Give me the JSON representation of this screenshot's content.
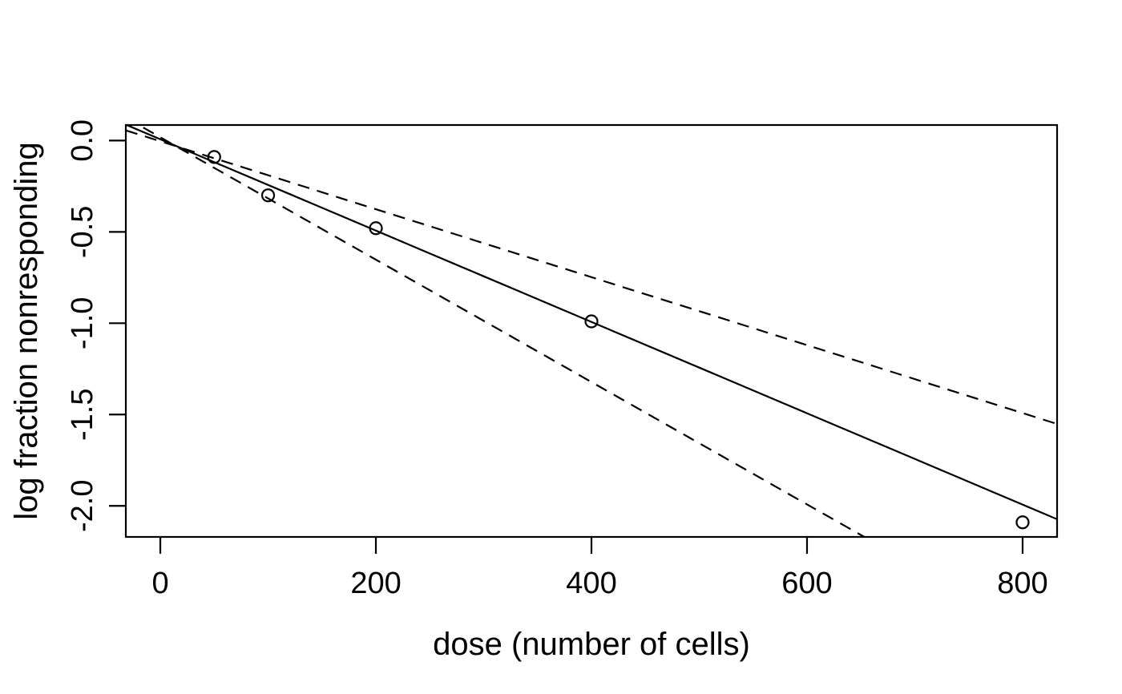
{
  "chart_data": {
    "type": "scatter",
    "title": "",
    "xlabel": "dose (number of cells)",
    "ylabel": "log fraction nonresponding",
    "xlim": [
      -32,
      832
    ],
    "ylim": [
      -2.17,
      0.085
    ],
    "grid": false,
    "legend": null,
    "x_ticks": {
      "values": [
        0,
        200,
        400,
        600,
        800
      ],
      "labels": [
        "0",
        "200",
        "400",
        "600",
        "800"
      ]
    },
    "y_ticks": {
      "values": [
        0,
        -0.5,
        -1.0,
        -1.5,
        -2.0
      ],
      "labels": [
        "0.0",
        "-0.5",
        "-1.0",
        "-1.5",
        "-2.0"
      ]
    },
    "points": {
      "marker": "open-circle",
      "x": [
        50,
        100,
        200,
        400,
        800
      ],
      "y": [
        -0.09,
        -0.3,
        -0.48,
        -0.99,
        -2.09
      ]
    },
    "lines": [
      {
        "name": "fit-line",
        "style": "solid",
        "slope": -0.0025,
        "intercept": 0.007
      },
      {
        "name": "upper-confidence-line",
        "style": "dashed",
        "slope": -0.00186,
        "intercept": -0.004
      },
      {
        "name": "lower-confidence-line",
        "style": "dashed",
        "slope": -0.00335,
        "intercept": 0.018
      }
    ],
    "colors": {
      "foreground": "#000000",
      "background": "#ffffff"
    }
  }
}
